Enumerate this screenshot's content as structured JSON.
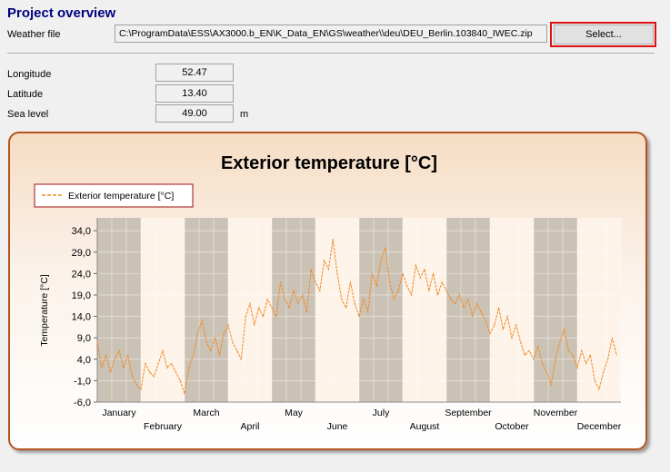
{
  "header": {
    "title": "Project overview"
  },
  "weather": {
    "label": "Weather file",
    "path": "C:\\ProgramData\\ESS\\AX3000.b_EN\\K_Data_EN\\GS\\weather\\\\deu\\DEU_Berlin.103840_IWEC.zip",
    "select_label": "Select..."
  },
  "location": {
    "longitude_label": "Longitude",
    "longitude": "52.47",
    "latitude_label": "Latitude",
    "latitude": "13.40",
    "sea_level_label": "Sea level",
    "sea_level": "49.00",
    "sea_level_unit": "m"
  },
  "colors": {
    "series": "#f08a24",
    "title": "#00007f",
    "highlight": "#e01010",
    "panel_border": "#b5541c"
  },
  "chart_data": {
    "type": "line",
    "title": "Exterior temperature [°C]",
    "ylabel": "Temperature [°C]",
    "xlabel": "",
    "ylim": [
      -6,
      37
    ],
    "yticks": [
      "34,0",
      "29,0",
      "24,0",
      "19,0",
      "14,0",
      "9,0",
      "4,0",
      "-1,0",
      "-6,0"
    ],
    "ytick_values": [
      34,
      29,
      24,
      19,
      14,
      9,
      4,
      -1,
      -6
    ],
    "months": [
      "January",
      "February",
      "March",
      "April",
      "May",
      "June",
      "July",
      "August",
      "September",
      "October",
      "November",
      "December"
    ],
    "legend": "top-left",
    "series": [
      {
        "name": "Exterior temperature [°C]",
        "x_unit": "month (1 = start of January)",
        "points": [
          [
            1.0,
            8
          ],
          [
            1.1,
            2
          ],
          [
            1.2,
            5
          ],
          [
            1.3,
            1
          ],
          [
            1.4,
            4
          ],
          [
            1.5,
            6
          ],
          [
            1.6,
            2
          ],
          [
            1.7,
            5
          ],
          [
            1.8,
            0
          ],
          [
            1.9,
            -2
          ],
          [
            2.0,
            -3
          ],
          [
            2.1,
            3
          ],
          [
            2.2,
            1
          ],
          [
            2.3,
            0
          ],
          [
            2.5,
            6
          ],
          [
            2.6,
            2
          ],
          [
            2.7,
            3
          ],
          [
            2.8,
            1
          ],
          [
            2.9,
            -1
          ],
          [
            3.0,
            -4
          ],
          [
            3.1,
            2
          ],
          [
            3.2,
            5
          ],
          [
            3.3,
            10
          ],
          [
            3.4,
            13
          ],
          [
            3.5,
            8
          ],
          [
            3.6,
            6
          ],
          [
            3.7,
            9
          ],
          [
            3.8,
            5
          ],
          [
            3.9,
            10
          ],
          [
            4.0,
            12
          ],
          [
            4.1,
            8
          ],
          [
            4.2,
            6
          ],
          [
            4.3,
            4
          ],
          [
            4.4,
            14
          ],
          [
            4.5,
            17
          ],
          [
            4.6,
            12
          ],
          [
            4.7,
            16
          ],
          [
            4.8,
            14
          ],
          [
            4.9,
            18
          ],
          [
            5.0,
            16
          ],
          [
            5.1,
            14
          ],
          [
            5.2,
            22
          ],
          [
            5.3,
            18
          ],
          [
            5.4,
            16
          ],
          [
            5.5,
            20
          ],
          [
            5.6,
            17
          ],
          [
            5.7,
            19
          ],
          [
            5.8,
            15
          ],
          [
            5.9,
            25
          ],
          [
            6.0,
            22
          ],
          [
            6.1,
            20
          ],
          [
            6.2,
            27
          ],
          [
            6.3,
            25
          ],
          [
            6.4,
            32
          ],
          [
            6.5,
            24
          ],
          [
            6.6,
            18
          ],
          [
            6.7,
            16
          ],
          [
            6.8,
            22
          ],
          [
            6.9,
            17
          ],
          [
            7.0,
            14
          ],
          [
            7.1,
            18
          ],
          [
            7.2,
            15
          ],
          [
            7.3,
            24
          ],
          [
            7.4,
            21
          ],
          [
            7.5,
            27
          ],
          [
            7.6,
            30
          ],
          [
            7.7,
            22
          ],
          [
            7.8,
            18
          ],
          [
            7.9,
            20
          ],
          [
            8.0,
            24
          ],
          [
            8.1,
            21
          ],
          [
            8.2,
            19
          ],
          [
            8.3,
            26
          ],
          [
            8.4,
            23
          ],
          [
            8.5,
            25
          ],
          [
            8.6,
            20
          ],
          [
            8.7,
            24
          ],
          [
            8.8,
            19
          ],
          [
            8.9,
            22
          ],
          [
            9.0,
            20
          ],
          [
            9.1,
            18
          ],
          [
            9.2,
            17
          ],
          [
            9.3,
            19
          ],
          [
            9.4,
            16
          ],
          [
            9.5,
            18
          ],
          [
            9.6,
            14
          ],
          [
            9.7,
            17
          ],
          [
            9.8,
            15
          ],
          [
            9.9,
            13
          ],
          [
            10.0,
            10
          ],
          [
            10.1,
            12
          ],
          [
            10.2,
            16
          ],
          [
            10.3,
            11
          ],
          [
            10.4,
            14
          ],
          [
            10.5,
            9
          ],
          [
            10.6,
            12
          ],
          [
            10.7,
            8
          ],
          [
            10.8,
            5
          ],
          [
            10.9,
            6
          ],
          [
            11.0,
            4
          ],
          [
            11.1,
            7
          ],
          [
            11.2,
            3
          ],
          [
            11.3,
            1
          ],
          [
            11.4,
            -2
          ],
          [
            11.5,
            4
          ],
          [
            11.6,
            8
          ],
          [
            11.7,
            11
          ],
          [
            11.8,
            6
          ],
          [
            11.9,
            5
          ],
          [
            12.0,
            2
          ],
          [
            12.1,
            6
          ],
          [
            12.2,
            3
          ],
          [
            12.3,
            5
          ],
          [
            12.4,
            -1
          ],
          [
            12.5,
            -3
          ],
          [
            12.6,
            1
          ],
          [
            12.7,
            4
          ],
          [
            12.8,
            9
          ],
          [
            12.9,
            5
          ]
        ]
      }
    ]
  }
}
